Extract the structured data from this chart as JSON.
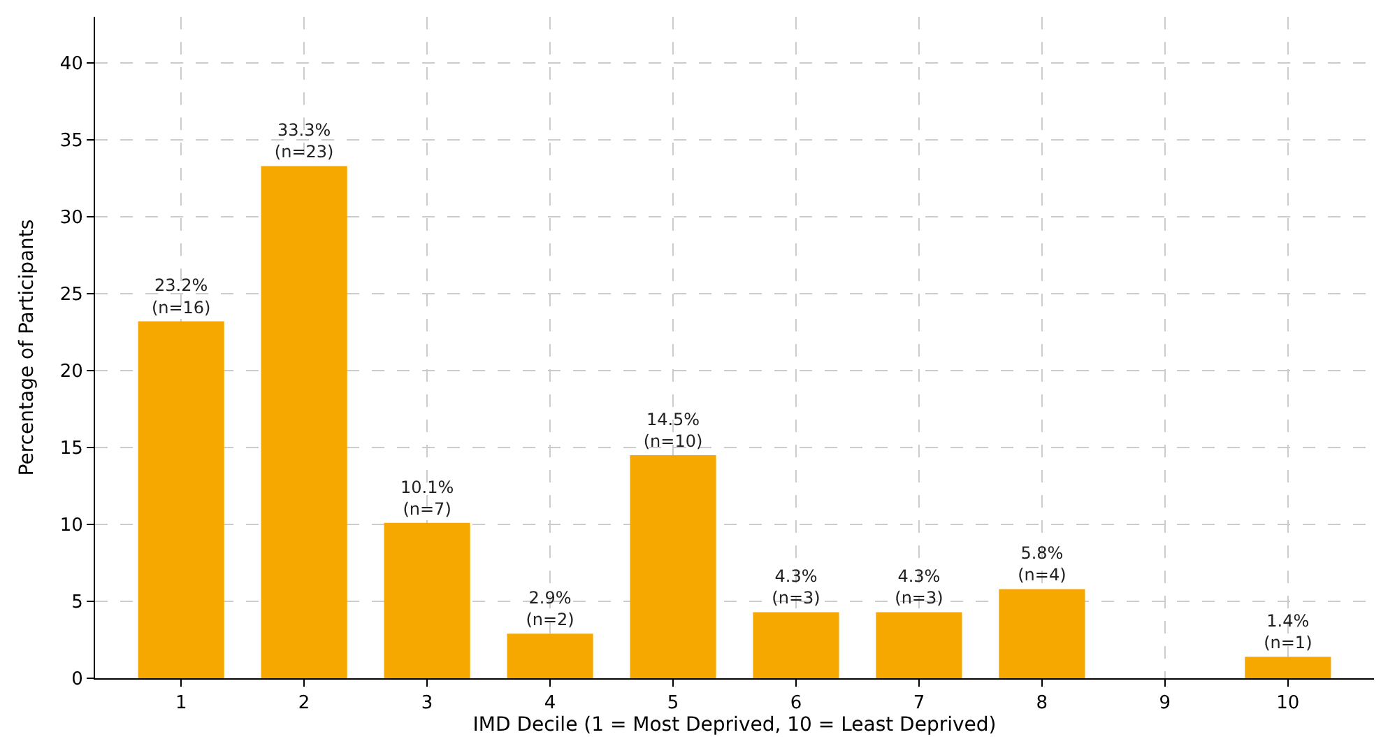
{
  "chart_data": {
    "type": "bar",
    "xlabel": "IMD Decile (1 = Most Deprived, 10 = Least Deprived)",
    "ylabel": "Percentage of Participants",
    "categories": [
      "1",
      "2",
      "3",
      "4",
      "5",
      "6",
      "7",
      "8",
      "9",
      "10"
    ],
    "values": [
      23.2,
      33.3,
      10.1,
      2.9,
      14.5,
      4.3,
      4.3,
      5.8,
      0,
      1.4
    ],
    "value_labels": [
      "23.2%\n(n=16)",
      "33.3%\n(n=23)",
      "10.1%\n(n=7)",
      "2.9%\n(n=2)",
      "14.5%\n(n=10)",
      "4.3%\n(n=3)",
      "4.3%\n(n=3)",
      "5.8%\n(n=4)",
      null,
      "1.4%\n(n=1)"
    ],
    "color": "#f7a800",
    "ylim": [
      0,
      43
    ],
    "yticks": [
      0,
      5,
      10,
      15,
      20,
      25,
      30,
      35,
      40
    ],
    "grid": true
  }
}
